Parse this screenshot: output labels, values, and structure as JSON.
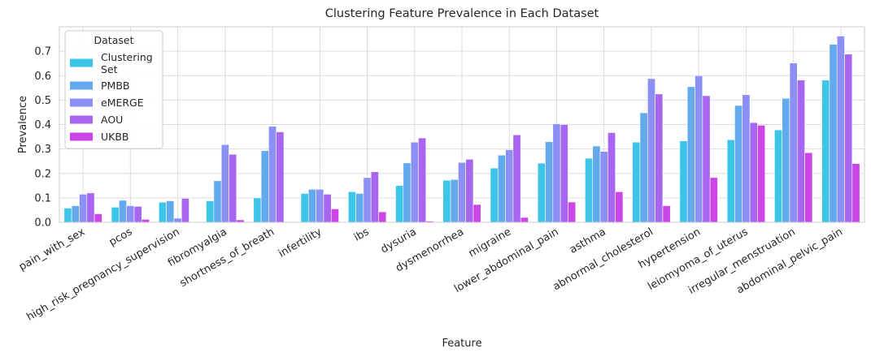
{
  "chart_data": {
    "type": "bar",
    "title": "Clustering Feature Prevalence in Each Dataset",
    "xlabel": "Feature",
    "ylabel": "Prevalence",
    "ylim": [
      0,
      0.8
    ],
    "yticks": [
      0.0,
      0.1,
      0.2,
      0.3,
      0.4,
      0.5,
      0.6,
      0.7
    ],
    "ytick_labels": [
      "0.0",
      "0.1",
      "0.2",
      "0.3",
      "0.4",
      "0.5",
      "0.6",
      "0.7"
    ],
    "grid": true,
    "legend": {
      "title": "Dataset",
      "position": "top-left"
    },
    "categories": [
      "pain_with_sex",
      "pcos",
      "high_risk_pregnancy_supervision",
      "fibromyalgia",
      "shortness_of_breath",
      "infertility",
      "ibs",
      "dysuria",
      "dysmenorrhea",
      "migraine",
      "lower_abdominal_pain",
      "asthma",
      "abnormal_cholesterol",
      "hypertension",
      "leiomyoma_of_uterus",
      "irregular_menstruation",
      "abdominal_pelvic_pain"
    ],
    "series": [
      {
        "name": "Clustering Set",
        "legend_lines": [
          "Clustering",
          "Set"
        ],
        "color": "#3cc5e8",
        "values": [
          0.058,
          0.062,
          0.082,
          0.088,
          0.1,
          0.118,
          0.125,
          0.15,
          0.172,
          0.222,
          0.242,
          0.262,
          0.328,
          0.333,
          0.338,
          0.378,
          0.582
        ]
      },
      {
        "name": "PMBB",
        "legend_lines": [
          "PMBB"
        ],
        "color": "#62a9ee",
        "values": [
          0.068,
          0.09,
          0.088,
          0.17,
          0.293,
          0.135,
          0.118,
          0.243,
          0.175,
          0.275,
          0.33,
          0.312,
          0.448,
          0.555,
          0.478,
          0.507,
          0.728
        ]
      },
      {
        "name": "eMERGE",
        "legend_lines": [
          "eMERGE"
        ],
        "color": "#8c8ff3",
        "values": [
          0.115,
          0.068,
          0.017,
          0.318,
          0.393,
          0.135,
          0.183,
          0.328,
          0.245,
          0.297,
          0.403,
          0.29,
          0.588,
          0.6,
          0.522,
          0.652,
          0.762
        ]
      },
      {
        "name": "AOU",
        "legend_lines": [
          "AOU"
        ],
        "color": "#a865f0",
        "values": [
          0.12,
          0.065,
          0.098,
          0.278,
          0.37,
          0.115,
          0.207,
          0.345,
          0.258,
          0.358,
          0.4,
          0.367,
          0.525,
          0.518,
          0.408,
          0.582,
          0.688
        ]
      },
      {
        "name": "UKBB",
        "legend_lines": [
          "UKBB"
        ],
        "color": "#cc45e6",
        "values": [
          0.035,
          0.012,
          0.0,
          0.01,
          0.0,
          0.055,
          0.043,
          0.005,
          0.073,
          0.02,
          0.083,
          0.125,
          0.068,
          0.183,
          0.397,
          0.285,
          0.24
        ]
      }
    ]
  }
}
